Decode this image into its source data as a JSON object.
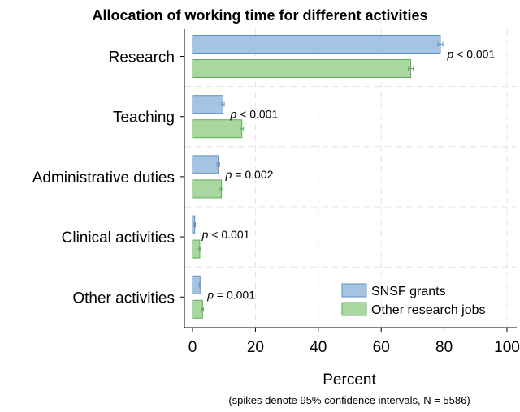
{
  "chart_data": {
    "type": "bar",
    "orientation": "horizontal",
    "title": "Allocation of working time for different activities",
    "xlabel": "Percent",
    "note": "(spikes denote 95% confidence intervals, N = 5586)",
    "xlim": [
      0,
      100
    ],
    "xticks": [
      0,
      20,
      40,
      60,
      80,
      100
    ],
    "grid": true,
    "legend_position": "bottom-right",
    "categories": [
      "Research",
      "Teaching",
      "Administrative duties",
      "Clinical activities",
      "Other activities"
    ],
    "series": [
      {
        "name": "SNSF grants",
        "color": "#a4c4e2",
        "edge": "#5b8fc6",
        "values": [
          78.8,
          9.7,
          8.2,
          0.7,
          2.4
        ],
        "ci": [
          [
            78.0,
            79.6
          ],
          [
            9.3,
            10.1
          ],
          [
            7.8,
            8.6
          ],
          [
            0.5,
            0.9
          ],
          [
            2.1,
            2.7
          ]
        ]
      },
      {
        "name": "Other research jobs",
        "color": "#a8d8a0",
        "edge": "#5fae55",
        "values": [
          69.4,
          15.7,
          9.2,
          2.3,
          3.2
        ],
        "ci": [
          [
            68.6,
            70.2
          ],
          [
            15.2,
            16.2
          ],
          [
            8.8,
            9.6
          ],
          [
            2.0,
            2.6
          ],
          [
            2.9,
            3.5
          ]
        ]
      }
    ],
    "annotations": [
      {
        "category": "Research",
        "text": "p < 0.001",
        "x": 81
      },
      {
        "category": "Teaching",
        "text": "p < 0.001",
        "x": 12
      },
      {
        "category": "Administrative duties",
        "text": "p = 0.002",
        "x": 10.5
      },
      {
        "category": "Clinical activities",
        "text": "p < 0.001",
        "x": 3
      },
      {
        "category": "Other activities",
        "text": "p = 0.001",
        "x": 4.7
      }
    ]
  }
}
